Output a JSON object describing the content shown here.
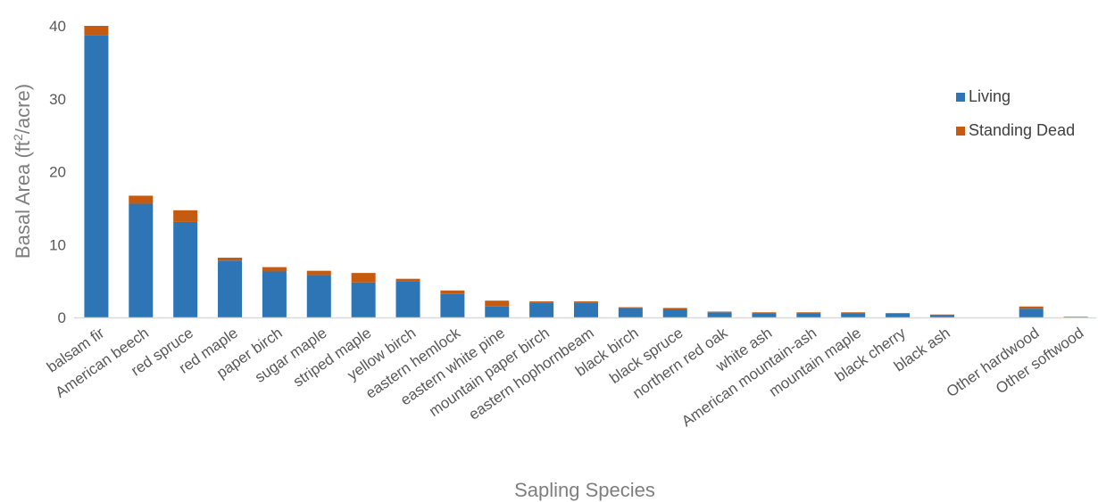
{
  "chart_data": {
    "type": "bar",
    "stacked": true,
    "xlabel": "Sapling Species",
    "ylabel_main": "Basal Area (ft",
    "ylabel_sup": "2",
    "ylabel_end": "/acre)",
    "ylim": [
      0,
      40
    ],
    "yticks": [
      "0",
      "10",
      "20",
      "30",
      "40"
    ],
    "grid": false,
    "legend_position": "right",
    "categories": [
      "balsam fir",
      "American beech",
      "red spruce",
      "red maple",
      "paper birch",
      "sugar maple",
      "striped maple",
      "yellow birch",
      "eastern hemlock",
      "eastern white pine",
      "mountain paper birch",
      "eastern hophornbeam",
      "black birch",
      "black spruce",
      "northern red oak",
      "white ash",
      "American mountain-ash",
      "mountain maple",
      "black cherry",
      "black ash",
      "",
      "Other hardwood",
      "Other softwood"
    ],
    "series": [
      {
        "name": "Living",
        "color": "#2e75b6",
        "values": [
          38.7,
          15.6,
          13.1,
          7.8,
          6.3,
          5.8,
          4.8,
          4.9,
          3.2,
          1.5,
          2.0,
          2.0,
          1.3,
          1.1,
          0.7,
          0.6,
          0.6,
          0.6,
          0.5,
          0.3,
          0,
          1.2,
          0.1
        ]
      },
      {
        "name": "Standing Dead",
        "color": "#c55a11",
        "values": [
          1.3,
          1.1,
          1.6,
          0.4,
          0.6,
          0.6,
          1.3,
          0.4,
          0.5,
          0.8,
          0.2,
          0.2,
          0.1,
          0.2,
          0.1,
          0.1,
          0.1,
          0.1,
          0.1,
          0.1,
          0,
          0.3,
          0.0
        ]
      }
    ]
  }
}
